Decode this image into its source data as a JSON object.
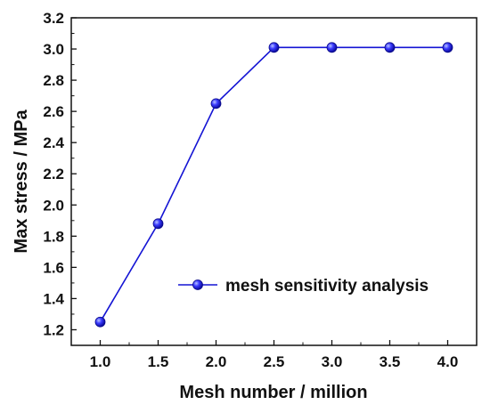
{
  "chart_data": {
    "type": "line",
    "title": "",
    "xlabel": "Mesh number  / million",
    "ylabel": "Max stress / MPa",
    "xlim": [
      0.75,
      4.25
    ],
    "ylim": [
      1.1,
      3.2
    ],
    "x_ticks": [
      "1.0",
      "1.5",
      "2.0",
      "2.5",
      "3.0",
      "3.5",
      "4.0"
    ],
    "y_ticks": [
      "1.2",
      "1.4",
      "1.6",
      "1.8",
      "2.0",
      "2.2",
      "2.4",
      "2.6",
      "2.8",
      "3.0",
      "3.2"
    ],
    "grid": false,
    "legend_position": "lower-right",
    "series": [
      {
        "name": "mesh sensitivity analysis",
        "color": "#1414d4",
        "marker": "circle",
        "x": [
          1.0,
          1.5,
          2.0,
          2.5,
          3.0,
          3.5,
          4.0
        ],
        "y": [
          1.25,
          1.88,
          2.65,
          3.01,
          3.01,
          3.01,
          3.01
        ]
      }
    ]
  }
}
